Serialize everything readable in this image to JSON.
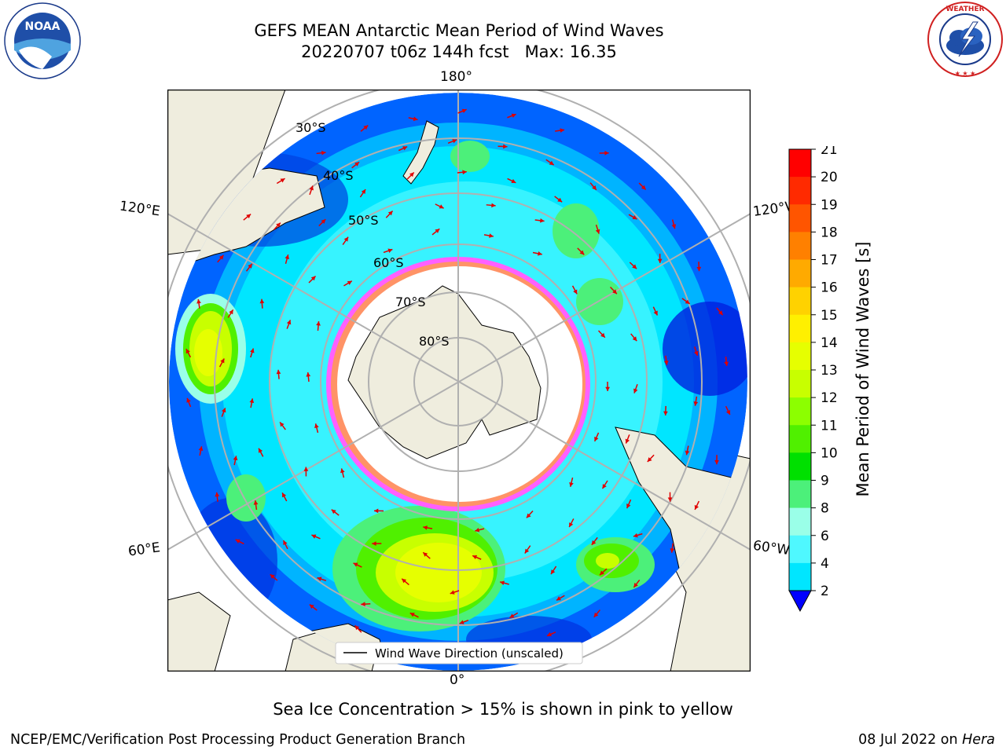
{
  "title": {
    "line1": "GEFS MEAN Antarctic Mean Period of Wind Waves",
    "line2": "20220707 t06z 144h fcst   Max: 16.35"
  },
  "logos": {
    "left": {
      "name": "noaa-logo",
      "text": "NOAA",
      "ring_text": "NATIONAL OCEANIC AND ATMOSPHERIC ADMINISTRATION · U.S. DEPARTMENT OF COMMERCE"
    },
    "right": {
      "name": "nws-logo",
      "ring_text": "NATIONAL WEATHER SERVICE"
    }
  },
  "map": {
    "projection": "south-polar-stereographic",
    "lon_labels": {
      "top": "180°",
      "bottom": "0°",
      "upper_left": "120°E",
      "upper_right": "120°W",
      "lower_left": "60°E",
      "lower_right": "60°W"
    },
    "lat_labels": [
      "30°S",
      "40°S",
      "50°S",
      "60°S",
      "70°S",
      "80°S"
    ],
    "legend": "Wind Wave Direction (unscaled)"
  },
  "colorbar": {
    "label": "Mean Period of Wind Waves [s]",
    "ticks": [
      "21",
      "20",
      "19",
      "18",
      "17",
      "16",
      "15",
      "14",
      "13",
      "12",
      "11",
      "10",
      "9",
      "8",
      "6",
      "4",
      "2"
    ],
    "colors": [
      "#ff0000",
      "#ff2a00",
      "#ff5500",
      "#ff8000",
      "#ffaa00",
      "#ffd200",
      "#fff000",
      "#e6ff00",
      "#c8ff00",
      "#8cff00",
      "#50f000",
      "#00e000",
      "#4cf07a",
      "#9affe8",
      "#4ff8ff",
      "#00e6ff",
      "#00b4ff",
      "#0064ff"
    ],
    "extend_color": "#0000ff"
  },
  "footnote": "Sea Ice Concentration > 15% is shown in pink to yellow",
  "credit_left": "NCEP/EMC/Verification Post Processing Product Generation Branch",
  "credit_right_prefix": "08 Jul 2022 on ",
  "credit_right_host": "Hera"
}
